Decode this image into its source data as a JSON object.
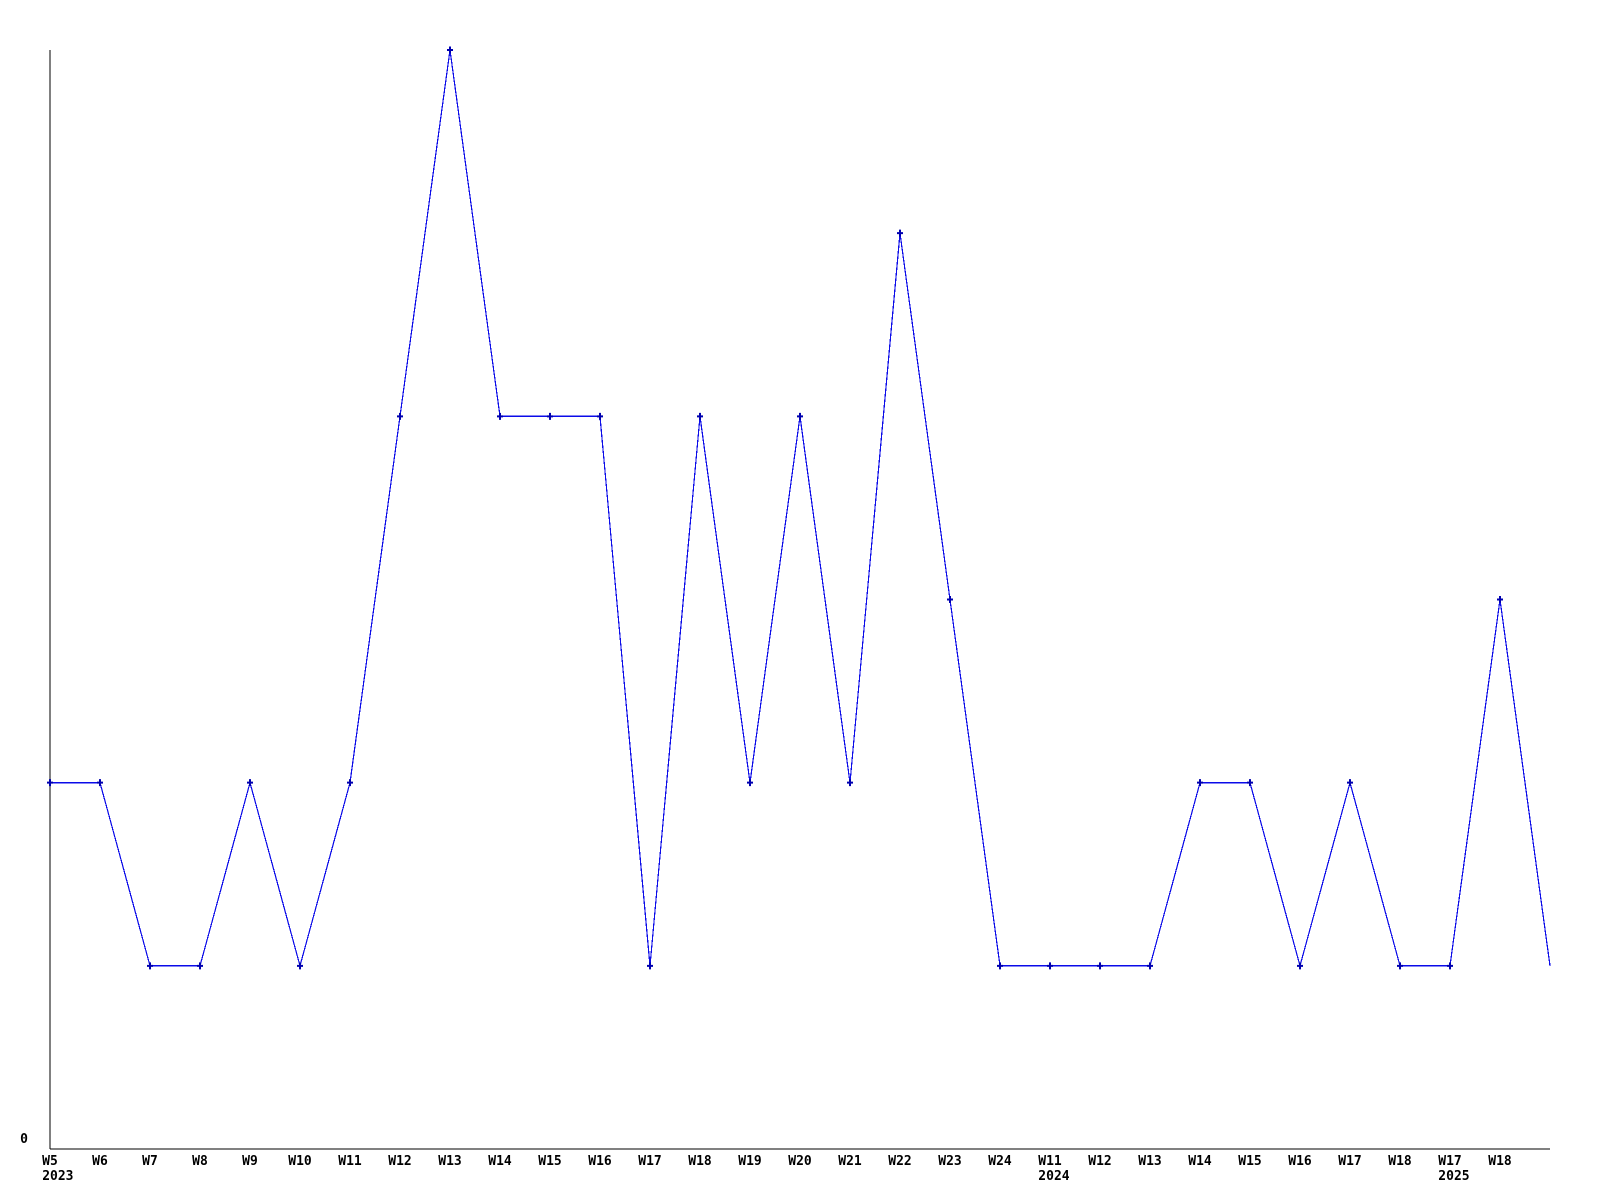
{
  "chart_data": {
    "type": "line",
    "title": "",
    "x_tick_labels": [
      "W5",
      "W6",
      "W7",
      "W8",
      "W9",
      "W10",
      "W11",
      "W12",
      "W13",
      "W14",
      "W15",
      "W16",
      "W17",
      "W18",
      "W19",
      "W20",
      "W21",
      "W22",
      "W23",
      "W24",
      "W11",
      "W12",
      "W13",
      "W14",
      "W15",
      "W16",
      "W17",
      "W18",
      "W17",
      "W18",
      ""
    ],
    "year_labels": [
      {
        "index": 0,
        "text": "2023"
      },
      {
        "index": 20,
        "text": "2024"
      },
      {
        "index": 28,
        "text": "2025"
      }
    ],
    "values": [
      2,
      2,
      1,
      1,
      2,
      1,
      2,
      4,
      6,
      4,
      4,
      4,
      1,
      4,
      2,
      4,
      2,
      5,
      3,
      1,
      1,
      1,
      1,
      2,
      2,
      1,
      2,
      1,
      1,
      3,
      1
    ],
    "ylim": [
      0,
      6
    ],
    "y_tick_labels": [
      {
        "value": 0,
        "text": "0"
      }
    ],
    "grid": false,
    "legend_position": "none",
    "marker_shape": "plus",
    "unmarked_point_indices": [
      30
    ],
    "colors": {
      "line": "#0b0be8",
      "marker": "#0000b0",
      "axis": "#000000",
      "text": "#000000",
      "background": "#ffffff"
    }
  }
}
